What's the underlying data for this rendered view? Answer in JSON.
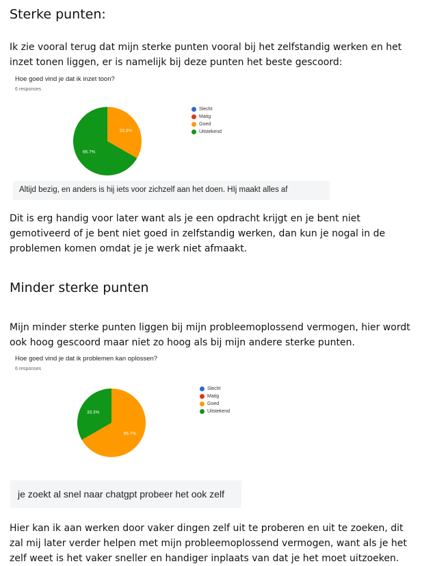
{
  "sections": {
    "strong": {
      "heading": "Sterke punten:",
      "intro": "Ik zie vooral terug dat mijn sterke punten vooral bij het zelfstandig werken en het inzet tonen liggen, er is namelijk bij deze punten het beste gescoord:",
      "response": "Altijd bezig, en anders is hij iets voor zichzelf aan het doen. HIj maakt alles af",
      "outro": "Dit is erg handig voor later want als je een opdracht krijgt en je bent niet gemotiveerd of je bent niet goed in zelfstandig werken, dan kun je nogal in de problemen komen omdat je je werk niet afmaakt."
    },
    "weak": {
      "heading": "Minder sterke punten",
      "intro": "Mijn minder sterke punten liggen bij mijn probleemoplossend vermogen, hier wordt ook hoog gescoord maar niet zo hoog als bij mijn andere sterke punten.",
      "response": "je zoekt al snel naar chatgpt probeer het ook zelf",
      "outro": "Hier kan ik aan werken door vaker dingen zelf uit te proberen en uit te zoeken, dit zal mij later verder helpen met mijn probleemoplossend vermogen, want als je het zelf weet is het vaker sneller en handiger inplaats van dat je het moet uitzoeken."
    }
  },
  "chart_data": [
    {
      "type": "pie",
      "title": "Hoe goed vind je dat ik inzet toon?",
      "subtitle": "6 responses",
      "legend_position": "right",
      "categories": [
        "Slecht",
        "Matig",
        "Goed",
        "Uitstekend"
      ],
      "colors": [
        "#3366cc",
        "#dc3912",
        "#ff9900",
        "#109618"
      ],
      "values": [
        0,
        0,
        33.3,
        66.7
      ],
      "labels": [
        "",
        "",
        "33.3%",
        "66.7%"
      ]
    },
    {
      "type": "pie",
      "title": "Hoe goed vind je dat ik problemen kan oplossen?",
      "subtitle": "6 responses",
      "legend_position": "right",
      "categories": [
        "Slecht",
        "Matig",
        "Goed",
        "Uitstekend"
      ],
      "colors": [
        "#3366cc",
        "#dc3912",
        "#ff9900",
        "#109618"
      ],
      "values": [
        0,
        0,
        66.7,
        33.3
      ],
      "labels": [
        "",
        "",
        "66.7%",
        "33.3%"
      ]
    }
  ]
}
